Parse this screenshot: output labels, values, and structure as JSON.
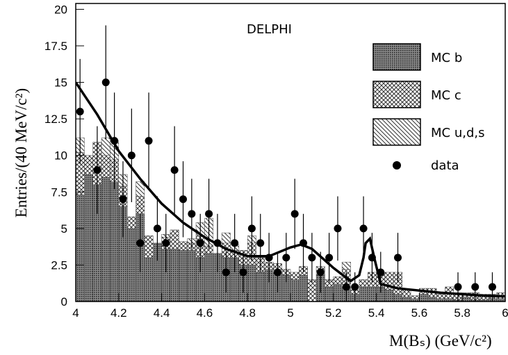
{
  "chart_data": {
    "type": "histogram",
    "title": "DELPHI",
    "x_label": "M(Bₛ) (GeV/c²)",
    "y_label": "Entries/(40 MeV/c²)",
    "bins": [
      4,
      4.04,
      4.08,
      4.12,
      4.16,
      4.2,
      4.24,
      4.28,
      4.32,
      4.36,
      4.4,
      4.44,
      4.48,
      4.52,
      4.56,
      4.6,
      4.64,
      4.68,
      4.72,
      4.76,
      4.8,
      4.84,
      4.88,
      4.92,
      4.96,
      5,
      5.04,
      5.08,
      5.12,
      5.16,
      5.2,
      5.24,
      5.28,
      5.32,
      5.36,
      5.4,
      5.44,
      5.48,
      5.52,
      5.56,
      5.6,
      5.64,
      5.68,
      5.72,
      5.76,
      5.8,
      5.84,
      5.88,
      5.92,
      5.96,
      6
    ],
    "series": [
      {
        "name": "MC b",
        "color": "#444",
        "pattern": "dots",
        "values": [
          7.3,
          8.7,
          8.0,
          8.5,
          8.2,
          6.5,
          5.0,
          6.0,
          3.0,
          4.0,
          3.6,
          3.6,
          3.5,
          3.5,
          3.0,
          3.3,
          3.3,
          3.0,
          3.0,
          2.5,
          2.5,
          2.0,
          2.2,
          2.0,
          1.8,
          1.5,
          1.8,
          0,
          1.8,
          1.0,
          1.2,
          1.0,
          0.5,
          1.0,
          1.0,
          1.0,
          0.8,
          0.5,
          0.3,
          0.2,
          0.5,
          0.3,
          0.2,
          0.2,
          0.1,
          0.3,
          0.1,
          0.1,
          0.2,
          0.2
        ]
      },
      {
        "name": "MC c",
        "color": "#444",
        "pattern": "crosshatch",
        "values": [
          2.9,
          1.3,
          2.9,
          1.5,
          1.5,
          1.4,
          0.8,
          1.2,
          1.5,
          0,
          0.8,
          1.3,
          0.6,
          0.5,
          1.5,
          0.5,
          0,
          1.0,
          0.5,
          1.0,
          1.5,
          1.0,
          0.5,
          0.6,
          0.4,
          0.5,
          0.6,
          1.5,
          0.6,
          0.5,
          0.5,
          1.2,
          0.3,
          0.5,
          1.0,
          1.0,
          1.2,
          1.5,
          0.5,
          0.2,
          0.4,
          0.6,
          0.3,
          0.8,
          0.5,
          0.3,
          0.5,
          0.4,
          0.3,
          0.4
        ]
      },
      {
        "name": "MC u,d,s",
        "color": "#444",
        "pattern": "hatch",
        "values": [
          1.0,
          0,
          0,
          1.2,
          1.3,
          0.8,
          0,
          1.0,
          0,
          0,
          0.2,
          0,
          0,
          0.3,
          0.9,
          1.9,
          0,
          0.7,
          0.4,
          0,
          0.5,
          0,
          0,
          0,
          0,
          0,
          0,
          0,
          0,
          0,
          0,
          0.5,
          0,
          0,
          0,
          0,
          0,
          0,
          0,
          0,
          0,
          0,
          0,
          0,
          0,
          0,
          0,
          0,
          0,
          0
        ]
      }
    ],
    "points": {
      "name": "data",
      "color": "#000",
      "x": [
        4.02,
        4.1,
        4.14,
        4.18,
        4.22,
        4.26,
        4.3,
        4.34,
        4.38,
        4.42,
        4.46,
        4.5,
        4.54,
        4.58,
        4.62,
        4.66,
        4.7,
        4.74,
        4.78,
        4.82,
        4.86,
        4.9,
        4.94,
        4.98,
        5.02,
        5.06,
        5.1,
        5.14,
        5.18,
        5.22,
        5.26,
        5.3,
        5.34,
        5.38,
        5.42,
        5.5,
        5.78,
        5.86,
        5.94
      ],
      "values": [
        13,
        9,
        15,
        11,
        7,
        10,
        4,
        11,
        5,
        4,
        9,
        7,
        6,
        4,
        6,
        4,
        2,
        4,
        2,
        5,
        4,
        3,
        2,
        3,
        6,
        4,
        3,
        2,
        3,
        5,
        1,
        1,
        5,
        3,
        2,
        3,
        1,
        1,
        1
      ],
      "errors": [
        3.6,
        3,
        3.9,
        3.3,
        2.6,
        3.2,
        2,
        3.3,
        2.2,
        2,
        3,
        2.6,
        2.4,
        2,
        2.4,
        2,
        1.4,
        2,
        1.4,
        2.2,
        2,
        1.7,
        1.4,
        1.7,
        2.4,
        2,
        1.7,
        1.4,
        1.7,
        2.2,
        1,
        1,
        2.2,
        1.7,
        1.4,
        1.7,
        1,
        1,
        1
      ]
    },
    "fit": {
      "color": "#000",
      "x": [
        4.0,
        4.1,
        4.2,
        4.3,
        4.4,
        4.5,
        4.6,
        4.7,
        4.8,
        4.9,
        5.0,
        5.05,
        5.1,
        5.2,
        5.28,
        5.32,
        5.34,
        5.35,
        5.37,
        5.39,
        5.42,
        5.5,
        5.7,
        5.9,
        6.0
      ],
      "values": [
        15,
        12.8,
        10.3,
        8.4,
        6.7,
        5.4,
        4.4,
        3.6,
        3.1,
        3.1,
        3.7,
        3.9,
        3.6,
        2.3,
        1.4,
        1.8,
        3.0,
        4.0,
        4.3,
        3.0,
        1.2,
        0.9,
        0.6,
        0.4,
        0.35
      ]
    },
    "xlim": [
      4,
      6
    ],
    "ylim": [
      0,
      20.4
    ],
    "xticks": [
      4,
      4.2,
      4.4,
      4.6,
      4.8,
      5,
      5.2,
      5.4,
      5.6,
      5.8,
      6
    ],
    "yticks": [
      0,
      2.5,
      5,
      7.5,
      10,
      12.5,
      15,
      17.5,
      20
    ]
  }
}
